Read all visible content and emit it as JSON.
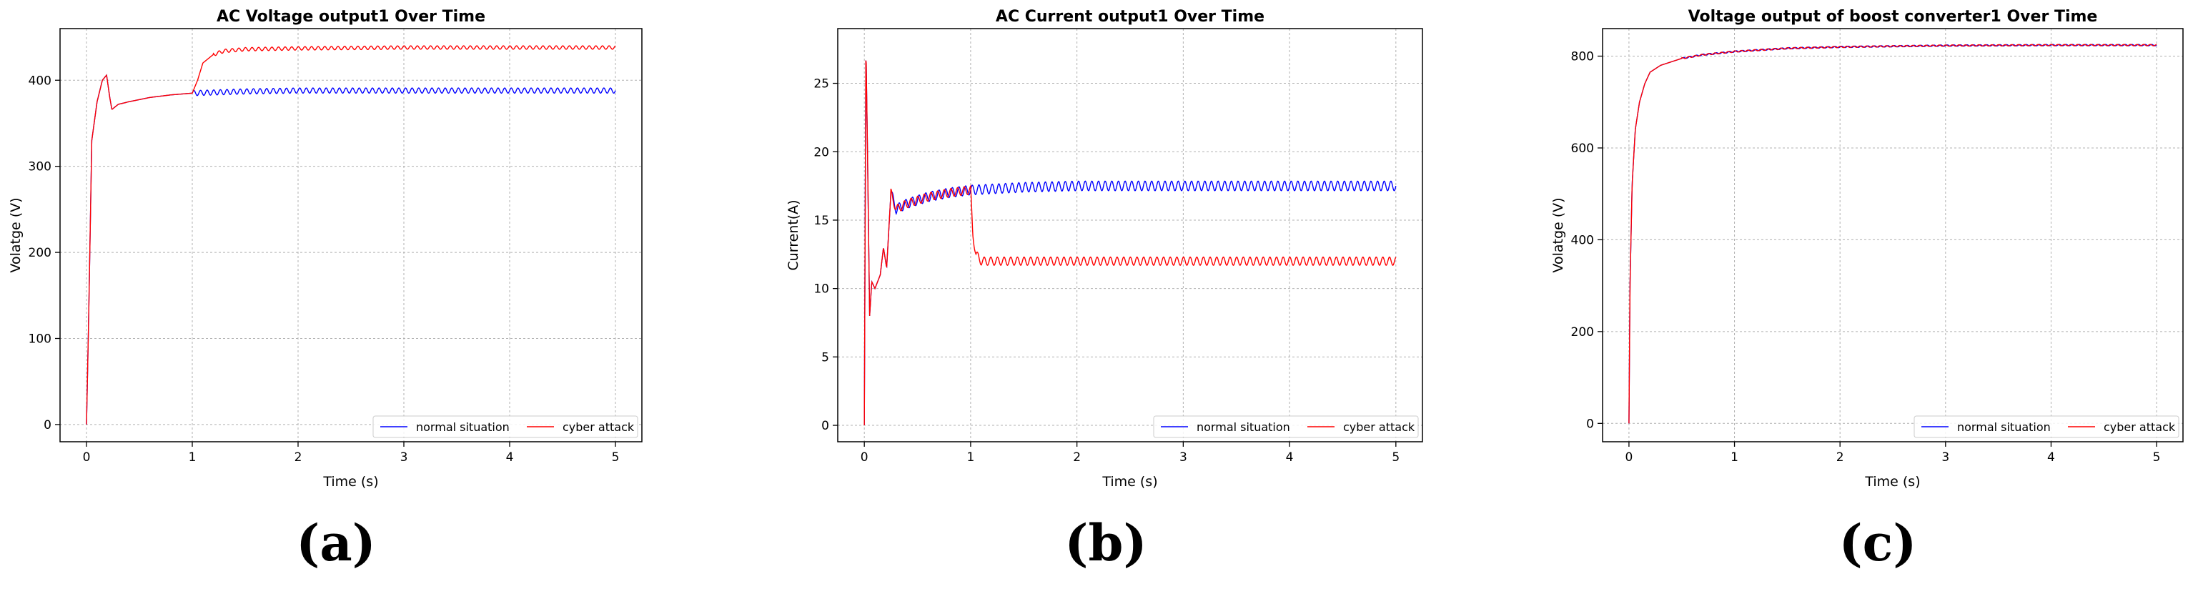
{
  "chart_data": [
    {
      "type": "line",
      "title": "AC Voltage output1  Over Time",
      "xlabel": "Time (s)",
      "ylabel": "Volatge (V)",
      "xlim": [
        -0.25,
        5.25
      ],
      "ylim": [
        -20,
        460
      ],
      "xticks": [
        0,
        1,
        2,
        3,
        4,
        5
      ],
      "yticks": [
        0,
        100,
        200,
        300,
        400
      ],
      "grid": true,
      "legend": "lower-right, horizontal",
      "sub_label": "(a)",
      "series": [
        {
          "name": "normal situation",
          "color": "#0000ff",
          "points": [
            [
              0,
              0
            ],
            [
              0.02,
              120
            ],
            [
              0.05,
              330
            ],
            [
              0.1,
              375
            ],
            [
              0.15,
              400
            ],
            [
              0.19,
              406
            ],
            [
              0.22,
              380
            ],
            [
              0.24,
              366
            ],
            [
              0.3,
              372
            ],
            [
              0.4,
              375
            ],
            [
              0.6,
              380
            ],
            [
              0.8,
              383
            ],
            [
              1.0,
              385
            ],
            [
              1.5,
              387
            ],
            [
              2.0,
              388
            ],
            [
              3.0,
              388
            ],
            [
              4.0,
              388
            ],
            [
              5.0,
              388
            ]
          ],
          "ripple": 3,
          "ripple_from": 1.0
        },
        {
          "name": "cyber attack",
          "color": "#ff0000",
          "points": [
            [
              0,
              0
            ],
            [
              0.02,
              120
            ],
            [
              0.05,
              330
            ],
            [
              0.1,
              375
            ],
            [
              0.15,
              400
            ],
            [
              0.19,
              406
            ],
            [
              0.22,
              380
            ],
            [
              0.24,
              366
            ],
            [
              0.3,
              372
            ],
            [
              0.4,
              375
            ],
            [
              0.6,
              380
            ],
            [
              0.8,
              383
            ],
            [
              1.0,
              385
            ],
            [
              1.05,
              400
            ],
            [
              1.1,
              420
            ],
            [
              1.2,
              430
            ],
            [
              1.3,
              434
            ],
            [
              1.5,
              436
            ],
            [
              2.0,
              437
            ],
            [
              3.0,
              438
            ],
            [
              4.0,
              438
            ],
            [
              5.0,
              438
            ]
          ],
          "ripple": 2,
          "ripple_from": 1.2
        }
      ]
    },
    {
      "type": "line",
      "title": "AC Current output1 Over Time",
      "xlabel": "Time (s)",
      "ylabel": "Current(A)",
      "xlim": [
        -0.25,
        5.25
      ],
      "ylim": [
        -1.2,
        29
      ],
      "xticks": [
        0,
        1,
        2,
        3,
        4,
        5
      ],
      "yticks": [
        0,
        5,
        10,
        15,
        20,
        25
      ],
      "grid": true,
      "legend": "lower-right, horizontal",
      "sub_label": "(b)",
      "series": [
        {
          "name": "normal situation",
          "color": "#0000ff",
          "points": [
            [
              0,
              0
            ],
            [
              0.015,
              28
            ],
            [
              0.03,
              20
            ],
            [
              0.05,
              8
            ],
            [
              0.07,
              10.5
            ],
            [
              0.1,
              10
            ],
            [
              0.15,
              11
            ],
            [
              0.18,
              13
            ],
            [
              0.21,
              11.5
            ],
            [
              0.25,
              17
            ],
            [
              0.3,
              15.8
            ],
            [
              0.4,
              16.2
            ],
            [
              0.6,
              16.7
            ],
            [
              0.8,
              17
            ],
            [
              1.0,
              17.2
            ],
            [
              1.5,
              17.4
            ],
            [
              2.0,
              17.5
            ],
            [
              3.0,
              17.5
            ],
            [
              4.0,
              17.5
            ],
            [
              5.0,
              17.5
            ]
          ],
          "ripple": 0.35,
          "ripple_from": 0.25
        },
        {
          "name": "cyber attack",
          "color": "#ff0000",
          "points": [
            [
              0,
              0
            ],
            [
              0.015,
              28
            ],
            [
              0.03,
              20
            ],
            [
              0.05,
              8
            ],
            [
              0.07,
              10.5
            ],
            [
              0.1,
              10
            ],
            [
              0.15,
              11
            ],
            [
              0.18,
              13
            ],
            [
              0.21,
              11.5
            ],
            [
              0.25,
              17
            ],
            [
              0.3,
              15.8
            ],
            [
              0.4,
              16.2
            ],
            [
              0.6,
              16.7
            ],
            [
              0.8,
              17
            ],
            [
              1.0,
              17.2
            ],
            [
              1.02,
              14
            ],
            [
              1.05,
              12.5
            ],
            [
              1.1,
              12
            ],
            [
              1.5,
              12
            ],
            [
              2.0,
              12
            ],
            [
              3.0,
              12
            ],
            [
              4.0,
              12
            ],
            [
              5.0,
              12
            ]
          ],
          "ripple": 0.3,
          "ripple_from": 0.25
        }
      ]
    },
    {
      "type": "line",
      "title": "Voltage output of boost converter1 Over Time",
      "xlabel": "Time (s)",
      "ylabel": "Volatge (V)",
      "xlim": [
        -0.25,
        5.25
      ],
      "ylim": [
        -40,
        860
      ],
      "xticks": [
        0,
        1,
        2,
        3,
        4,
        5
      ],
      "yticks": [
        0,
        200,
        400,
        600,
        800
      ],
      "grid": true,
      "legend": "lower-right, horizontal",
      "sub_label": "(c)",
      "series": [
        {
          "name": "normal situation",
          "color": "#0000ff",
          "points": [
            [
              0,
              0
            ],
            [
              0.01,
              300
            ],
            [
              0.03,
              520
            ],
            [
              0.06,
              640
            ],
            [
              0.1,
              700
            ],
            [
              0.15,
              740
            ],
            [
              0.2,
              765
            ],
            [
              0.3,
              780
            ],
            [
              0.5,
              795
            ],
            [
              0.7,
              803
            ],
            [
              1.0,
              810
            ],
            [
              1.5,
              817
            ],
            [
              2.0,
              820
            ],
            [
              3.0,
              823
            ],
            [
              4.0,
              824
            ],
            [
              5.0,
              824
            ]
          ],
          "ripple": 1.5,
          "ripple_from": 0.5
        },
        {
          "name": "cyber attack",
          "color": "#ff0000",
          "points": [
            [
              0,
              0
            ],
            [
              0.01,
              300
            ],
            [
              0.03,
              520
            ],
            [
              0.06,
              640
            ],
            [
              0.1,
              700
            ],
            [
              0.15,
              740
            ],
            [
              0.2,
              765
            ],
            [
              0.3,
              780
            ],
            [
              0.5,
              795
            ],
            [
              0.7,
              803
            ],
            [
              1.0,
              810
            ],
            [
              1.5,
              817
            ],
            [
              2.0,
              820
            ],
            [
              3.0,
              823
            ],
            [
              4.0,
              824
            ],
            [
              5.0,
              824
            ]
          ],
          "ripple": 1.5,
          "ripple_from": 0.5
        }
      ]
    }
  ]
}
